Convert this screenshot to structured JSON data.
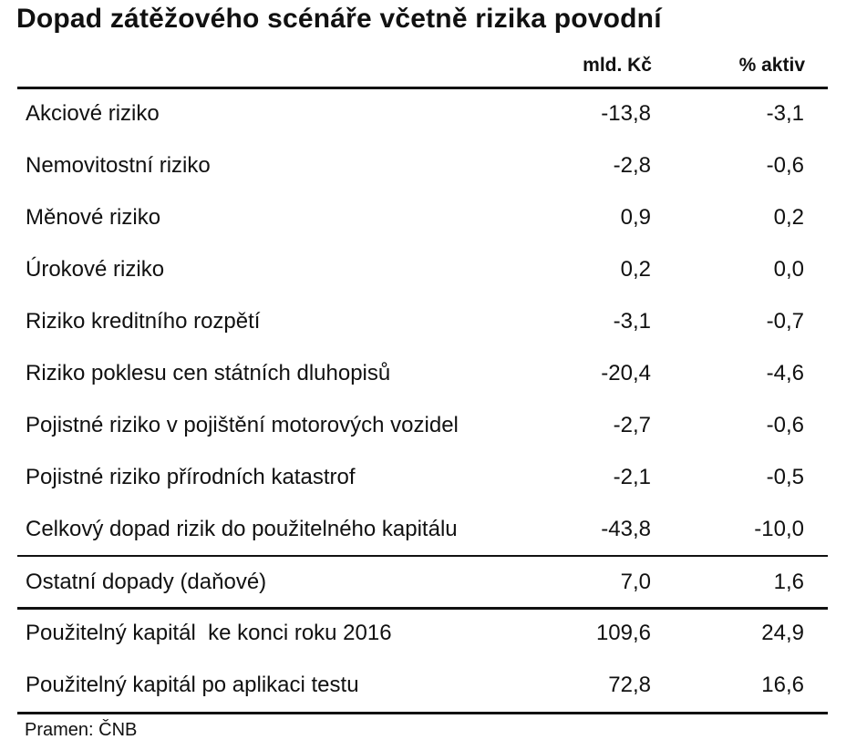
{
  "title": "Dopad zátěžového scénáře včetně rizika povodní",
  "columns": [
    "mld. Kč",
    "% aktiv"
  ],
  "rows": [
    {
      "label": "Akciové riziko",
      "mld": "-13,8",
      "pct": "-3,1"
    },
    {
      "label": "Nemovitostní riziko",
      "mld": "-2,8",
      "pct": "-0,6"
    },
    {
      "label": "Měnové riziko",
      "mld": "0,9",
      "pct": "0,2"
    },
    {
      "label": "Úrokové riziko",
      "mld": "0,2",
      "pct": "0,0"
    },
    {
      "label": "Riziko kreditního rozpětí",
      "mld": "-3,1",
      "pct": "-0,7"
    },
    {
      "label": "Riziko poklesu cen státních dluhopisů",
      "mld": "-20,4",
      "pct": "-4,6"
    },
    {
      "label": "Pojistné riziko v pojištění motorových vozidel",
      "mld": "-2,7",
      "pct": "-0,6"
    },
    {
      "label": "Pojistné riziko přírodních katastrof",
      "mld": "-2,1",
      "pct": "-0,5"
    },
    {
      "label": "Celkový dopad rizik do použitelného kapitálu",
      "mld": "-43,8",
      "pct": "-10,0"
    },
    {
      "label": "Ostatní dopady (daňové)",
      "mld": "7,0",
      "pct": "1,6"
    },
    {
      "label": "Použitelný kapitál  ke konci roku 2016",
      "mld": "109,6",
      "pct": "24,9"
    },
    {
      "label": "Použitelný kapitál po aplikaci testu",
      "mld": "72,8",
      "pct": "16,6"
    }
  ],
  "source": "Pramen: ČNB"
}
